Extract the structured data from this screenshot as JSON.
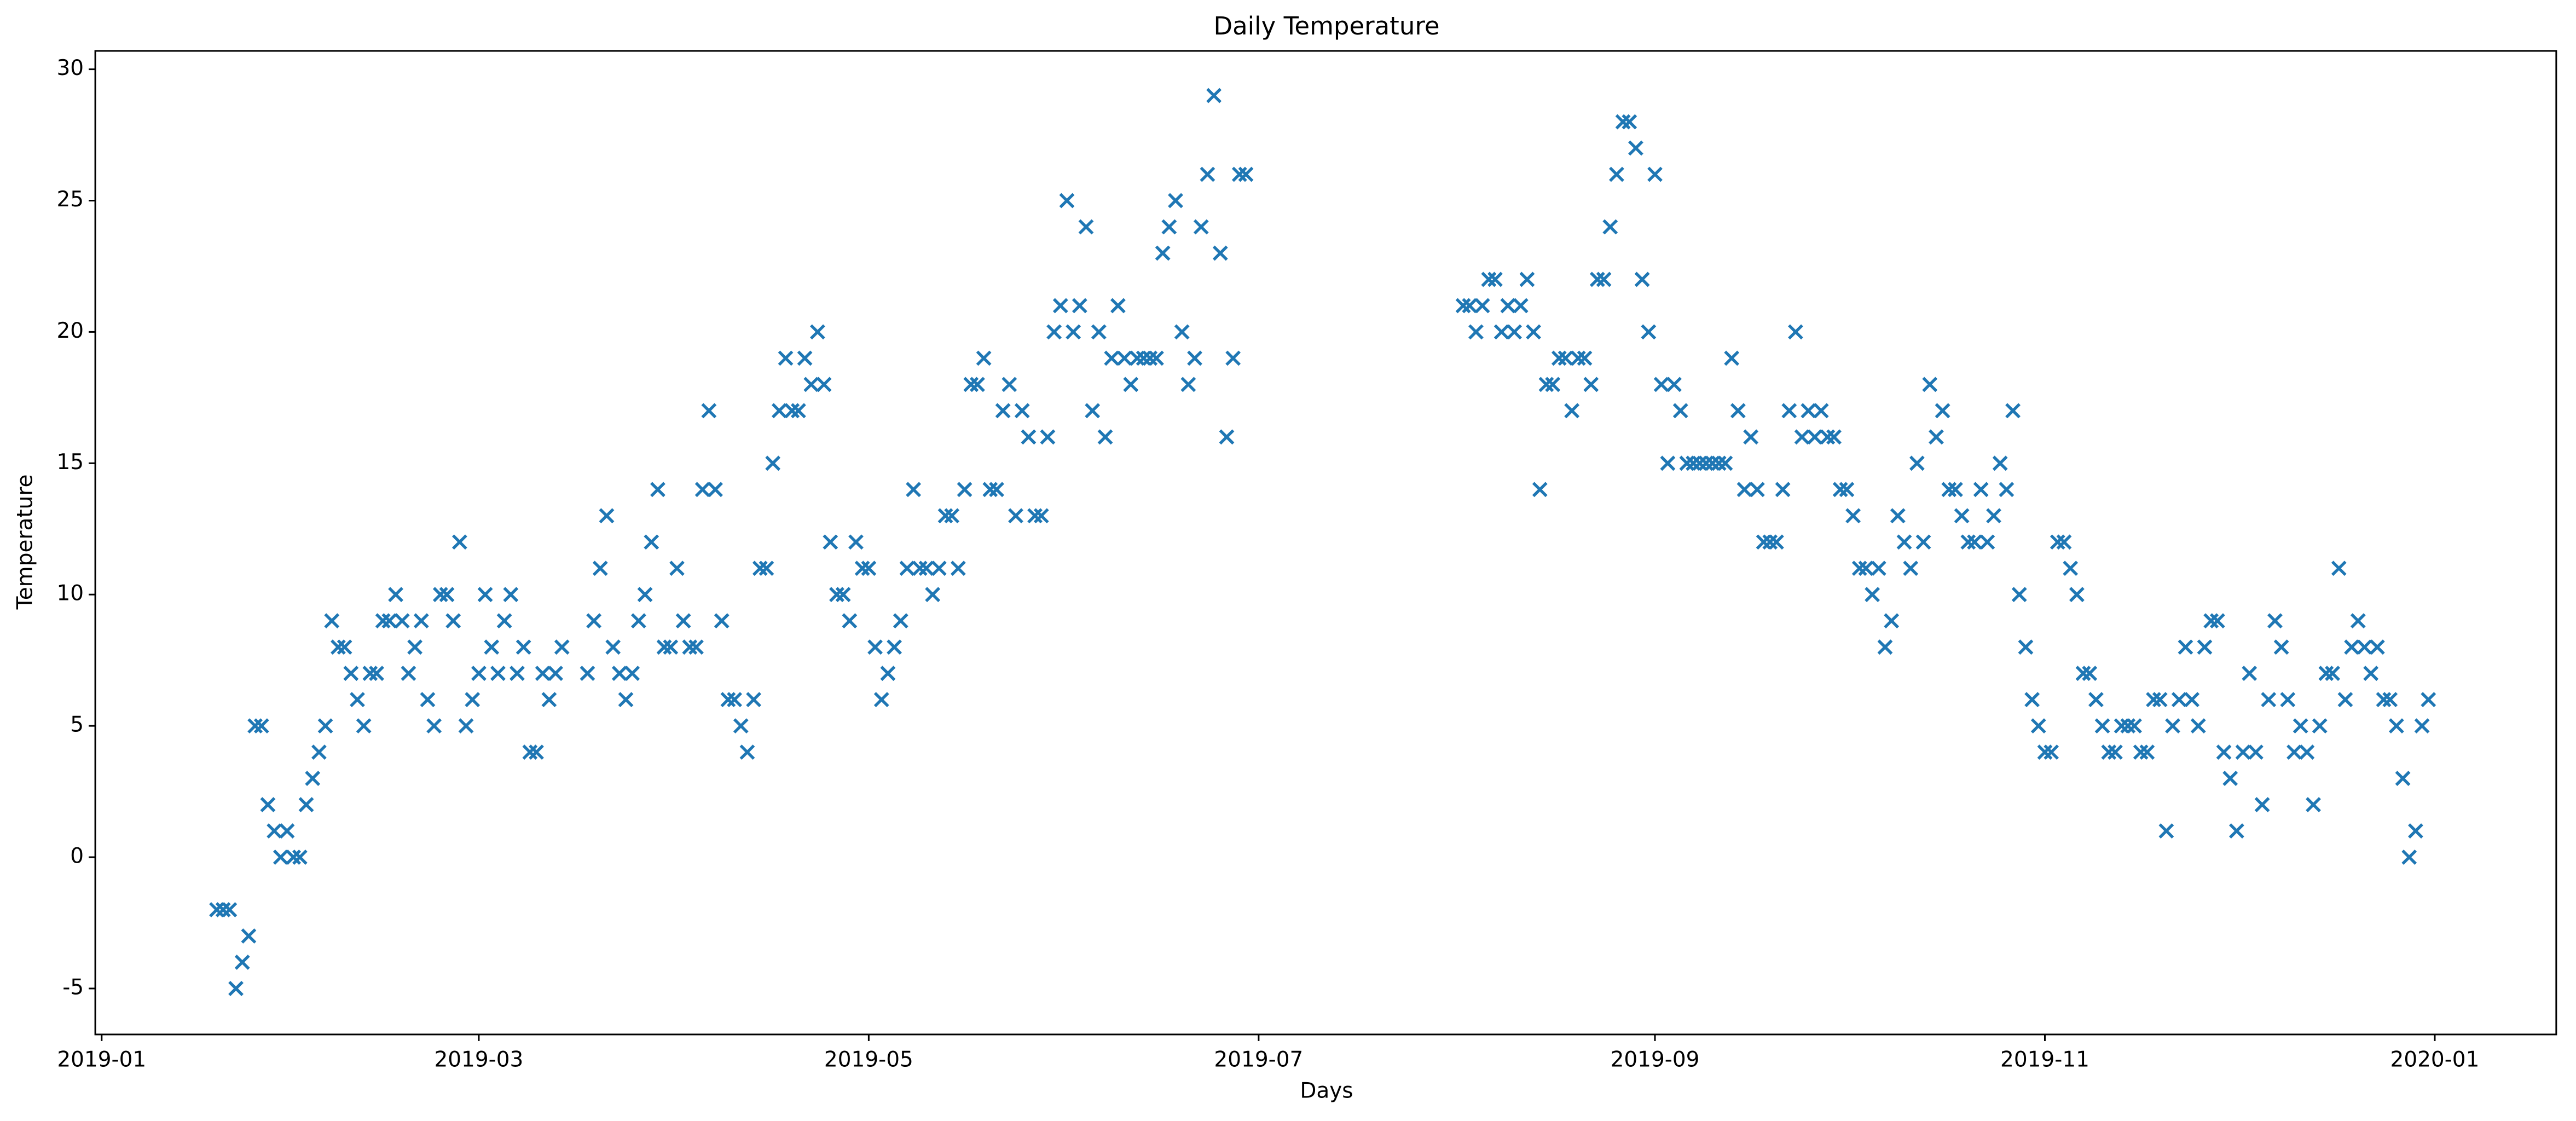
{
  "chart_data": {
    "type": "scatter",
    "title": "Daily Temperature",
    "x_label": "Days",
    "y_label": "Temperature",
    "marker": "x",
    "color": "#1f77b4",
    "series": [
      {
        "name": "Temperature",
        "color": "#1f77b4",
        "x": [
          "2019-01-19",
          "2019-01-20",
          "2019-01-21",
          "2019-01-22",
          "2019-01-23",
          "2019-01-24",
          "2019-01-25",
          "2019-01-26",
          "2019-01-27",
          "2019-01-28",
          "2019-01-29",
          "2019-01-30",
          "2019-01-31",
          "2019-02-01",
          "2019-02-02",
          "2019-02-03",
          "2019-02-04",
          "2019-02-05",
          "2019-02-06",
          "2019-02-07",
          "2019-02-08",
          "2019-02-09",
          "2019-02-10",
          "2019-02-11",
          "2019-02-12",
          "2019-02-13",
          "2019-02-14",
          "2019-02-15",
          "2019-02-16",
          "2019-02-17",
          "2019-02-18",
          "2019-02-19",
          "2019-02-20",
          "2019-02-21",
          "2019-02-22",
          "2019-02-23",
          "2019-02-24",
          "2019-02-25",
          "2019-02-26",
          "2019-02-27",
          "2019-02-28",
          "2019-03-01",
          "2019-03-02",
          "2019-03-03",
          "2019-03-04",
          "2019-03-05",
          "2019-03-06",
          "2019-03-07",
          "2019-03-08",
          "2019-03-09",
          "2019-03-10",
          "2019-03-11",
          "2019-03-12",
          "2019-03-13",
          "2019-03-14",
          "2019-03-18",
          "2019-03-19",
          "2019-03-20",
          "2019-03-21",
          "2019-03-22",
          "2019-03-23",
          "2019-03-24",
          "2019-03-25",
          "2019-03-26",
          "2019-03-27",
          "2019-03-28",
          "2019-03-29",
          "2019-03-30",
          "2019-03-31",
          "2019-04-01",
          "2019-04-02",
          "2019-04-03",
          "2019-04-04",
          "2019-04-05",
          "2019-04-06",
          "2019-04-07",
          "2019-04-08",
          "2019-04-09",
          "2019-04-10",
          "2019-04-11",
          "2019-04-12",
          "2019-04-13",
          "2019-04-14",
          "2019-04-15",
          "2019-04-16",
          "2019-04-17",
          "2019-04-18",
          "2019-04-19",
          "2019-04-20",
          "2019-04-21",
          "2019-04-22",
          "2019-04-23",
          "2019-04-24",
          "2019-04-25",
          "2019-04-26",
          "2019-04-27",
          "2019-04-28",
          "2019-04-29",
          "2019-04-30",
          "2019-05-01",
          "2019-05-02",
          "2019-05-03",
          "2019-05-04",
          "2019-05-05",
          "2019-05-06",
          "2019-05-07",
          "2019-05-08",
          "2019-05-09",
          "2019-05-10",
          "2019-05-11",
          "2019-05-12",
          "2019-05-13",
          "2019-05-14",
          "2019-05-15",
          "2019-05-16",
          "2019-05-17",
          "2019-05-18",
          "2019-05-19",
          "2019-05-20",
          "2019-05-21",
          "2019-05-22",
          "2019-05-23",
          "2019-05-24",
          "2019-05-25",
          "2019-05-26",
          "2019-05-27",
          "2019-05-28",
          "2019-05-29",
          "2019-05-30",
          "2019-05-31",
          "2019-06-01",
          "2019-06-02",
          "2019-06-03",
          "2019-06-04",
          "2019-06-05",
          "2019-06-06",
          "2019-06-07",
          "2019-06-08",
          "2019-06-09",
          "2019-06-10",
          "2019-06-11",
          "2019-06-12",
          "2019-06-13",
          "2019-06-14",
          "2019-06-15",
          "2019-06-16",
          "2019-06-17",
          "2019-06-18",
          "2019-06-19",
          "2019-06-20",
          "2019-06-21",
          "2019-06-22",
          "2019-06-23",
          "2019-06-24",
          "2019-06-25",
          "2019-06-26",
          "2019-06-27",
          "2019-06-28",
          "2019-06-29",
          "2019-08-02",
          "2019-08-03",
          "2019-08-04",
          "2019-08-05",
          "2019-08-06",
          "2019-08-07",
          "2019-08-08",
          "2019-08-09",
          "2019-08-10",
          "2019-08-11",
          "2019-08-12",
          "2019-08-13",
          "2019-08-14",
          "2019-08-15",
          "2019-08-16",
          "2019-08-17",
          "2019-08-18",
          "2019-08-19",
          "2019-08-20",
          "2019-08-21",
          "2019-08-22",
          "2019-08-23",
          "2019-08-24",
          "2019-08-25",
          "2019-08-26",
          "2019-08-27",
          "2019-08-28",
          "2019-08-29",
          "2019-08-30",
          "2019-08-31",
          "2019-09-01",
          "2019-09-02",
          "2019-09-03",
          "2019-09-04",
          "2019-09-05",
          "2019-09-06",
          "2019-09-07",
          "2019-09-08",
          "2019-09-09",
          "2019-09-10",
          "2019-09-11",
          "2019-09-12",
          "2019-09-13",
          "2019-09-14",
          "2019-09-15",
          "2019-09-16",
          "2019-09-17",
          "2019-09-18",
          "2019-09-19",
          "2019-09-20",
          "2019-09-21",
          "2019-09-22",
          "2019-09-23",
          "2019-09-24",
          "2019-09-25",
          "2019-09-26",
          "2019-09-27",
          "2019-09-28",
          "2019-09-29",
          "2019-09-30",
          "2019-10-01",
          "2019-10-02",
          "2019-10-03",
          "2019-10-04",
          "2019-10-05",
          "2019-10-06",
          "2019-10-07",
          "2019-10-08",
          "2019-10-09",
          "2019-10-10",
          "2019-10-11",
          "2019-10-12",
          "2019-10-13",
          "2019-10-14",
          "2019-10-15",
          "2019-10-16",
          "2019-10-17",
          "2019-10-18",
          "2019-10-19",
          "2019-10-20",
          "2019-10-21",
          "2019-10-22",
          "2019-10-23",
          "2019-10-24",
          "2019-10-25",
          "2019-10-26",
          "2019-10-27",
          "2019-10-28",
          "2019-10-29",
          "2019-10-30",
          "2019-10-31",
          "2019-11-01",
          "2019-11-02",
          "2019-11-03",
          "2019-11-04",
          "2019-11-05",
          "2019-11-06",
          "2019-11-07",
          "2019-11-08",
          "2019-11-09",
          "2019-11-10",
          "2019-11-11",
          "2019-11-12",
          "2019-11-13",
          "2019-11-14",
          "2019-11-15",
          "2019-11-16",
          "2019-11-17",
          "2019-11-18",
          "2019-11-19",
          "2019-11-20",
          "2019-11-21",
          "2019-11-22",
          "2019-11-23",
          "2019-11-24",
          "2019-11-25",
          "2019-11-26",
          "2019-11-27",
          "2019-11-28",
          "2019-11-29",
          "2019-11-30",
          "2019-12-01",
          "2019-12-02",
          "2019-12-03",
          "2019-12-04",
          "2019-12-05",
          "2019-12-06",
          "2019-12-07",
          "2019-12-08",
          "2019-12-09",
          "2019-12-10",
          "2019-12-11",
          "2019-12-12",
          "2019-12-13",
          "2019-12-14",
          "2019-12-15",
          "2019-12-16",
          "2019-12-17",
          "2019-12-18",
          "2019-12-19",
          "2019-12-20",
          "2019-12-21",
          "2019-12-22",
          "2019-12-23",
          "2019-12-24",
          "2019-12-25",
          "2019-12-26",
          "2019-12-27",
          "2019-12-28",
          "2019-12-29",
          "2019-12-30",
          "2019-12-31"
        ],
        "values": [
          -2,
          -2,
          -2,
          -5,
          -4,
          -3,
          5,
          5,
          2,
          1,
          0,
          1,
          0,
          0,
          2,
          3,
          4,
          5,
          9,
          8,
          8,
          7,
          6,
          5,
          7,
          7,
          9,
          9,
          10,
          9,
          7,
          8,
          9,
          6,
          5,
          10,
          10,
          9,
          12,
          5,
          6,
          7,
          10,
          8,
          7,
          9,
          10,
          7,
          8,
          4,
          4,
          7,
          6,
          7,
          8,
          7,
          9,
          11,
          13,
          8,
          7,
          6,
          7,
          9,
          10,
          12,
          14,
          8,
          8,
          11,
          9,
          8,
          8,
          14,
          17,
          14,
          9,
          6,
          6,
          5,
          4,
          6,
          11,
          11,
          15,
          17,
          19,
          17,
          17,
          19,
          18,
          20,
          18,
          12,
          10,
          10,
          9,
          12,
          11,
          11,
          8,
          6,
          7,
          8,
          9,
          11,
          14,
          11,
          11,
          10,
          11,
          13,
          13,
          11,
          14,
          18,
          18,
          19,
          14,
          14,
          17,
          18,
          13,
          17,
          16,
          13,
          13,
          16,
          20,
          21,
          25,
          20,
          21,
          24,
          17,
          20,
          16,
          19,
          21,
          19,
          18,
          19,
          19,
          19,
          19,
          23,
          24,
          25,
          20,
          18,
          19,
          24,
          26,
          29,
          23,
          16,
          19,
          26,
          26,
          21,
          21,
          20,
          21,
          22,
          22,
          20,
          21,
          20,
          21,
          22,
          20,
          14,
          18,
          18,
          19,
          19,
          17,
          19,
          19,
          18,
          22,
          22,
          24,
          26,
          28,
          28,
          27,
          22,
          20,
          26,
          18,
          15,
          18,
          17,
          15,
          15,
          15,
          15,
          15,
          15,
          15,
          19,
          17,
          14,
          16,
          14,
          12,
          12,
          12,
          14,
          17,
          20,
          16,
          17,
          16,
          17,
          16,
          16,
          14,
          14,
          13,
          11,
          11,
          10,
          11,
          8,
          9,
          13,
          12,
          11,
          15,
          12,
          18,
          16,
          17,
          14,
          14,
          13,
          12,
          12,
          14,
          12,
          13,
          15,
          14,
          17,
          10,
          8,
          6,
          5,
          4,
          4,
          12,
          12,
          11,
          10,
          7,
          7,
          6,
          5,
          4,
          4,
          5,
          5,
          5,
          4,
          4,
          6,
          6,
          1,
          5,
          6,
          8,
          6,
          5,
          8,
          9,
          9,
          4,
          3,
          1,
          4,
          7,
          4,
          2,
          6,
          9,
          8,
          6,
          4,
          5,
          4,
          2,
          5,
          7,
          7,
          11,
          6,
          8,
          9,
          8,
          7,
          8,
          6,
          6,
          5,
          3,
          0,
          1,
          5,
          6
        ]
      }
    ],
    "xlim": [
      "2018-12-31",
      "2020-01-20"
    ],
    "xticks": [
      {
        "value": "2019-01-01",
        "label": "2019-01"
      },
      {
        "value": "2019-03-01",
        "label": "2019-03"
      },
      {
        "value": "2019-05-01",
        "label": "2019-05"
      },
      {
        "value": "2019-07-01",
        "label": "2019-07"
      },
      {
        "value": "2019-09-01",
        "label": "2019-09"
      },
      {
        "value": "2019-11-01",
        "label": "2019-11"
      },
      {
        "value": "2020-01-01",
        "label": "2020-01"
      }
    ],
    "ylim": [
      -6.75,
      30.7
    ],
    "yticks": [
      -5,
      0,
      5,
      10,
      15,
      20,
      25,
      30
    ],
    "grid": false
  }
}
